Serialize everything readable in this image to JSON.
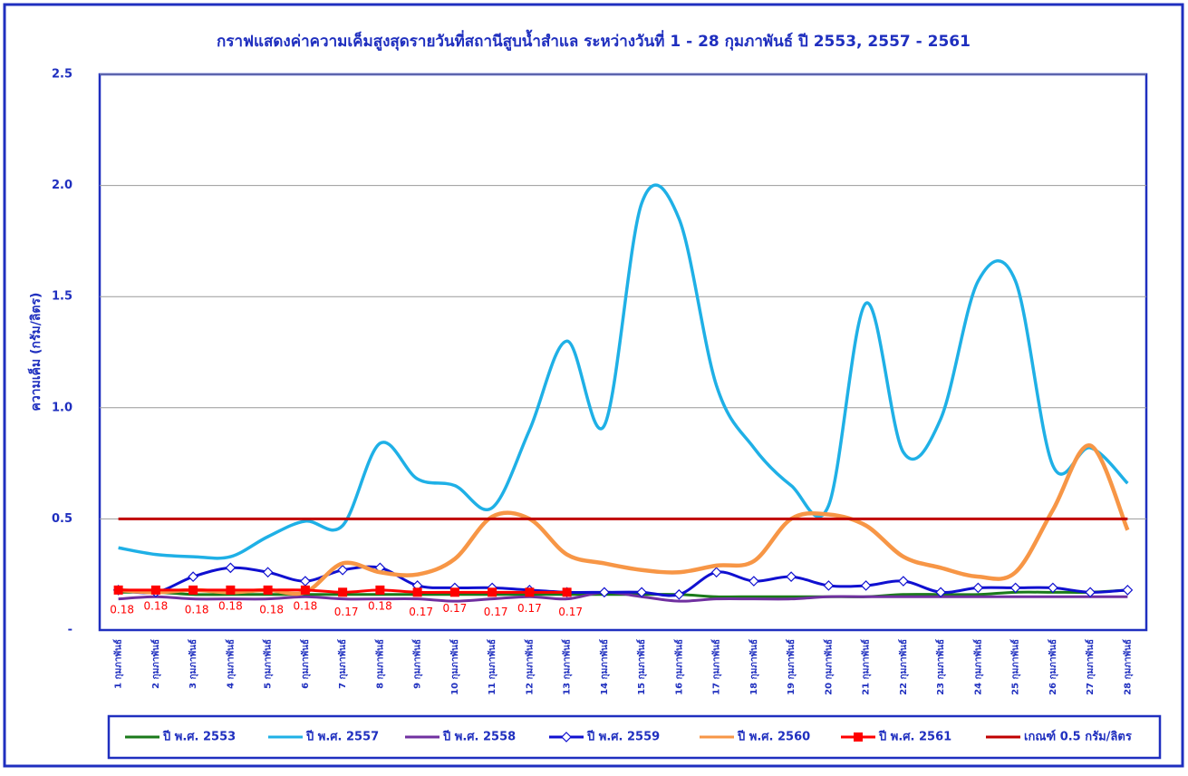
{
  "chart_data": {
    "type": "line",
    "title": "กราฟแสดงค่าความเค็มสูงสุดรายวันที่สถานีสูบน้ำสำแล ระหว่างวันที่ 1 - 28 กุมภาพันธ์ ปี 2553, 2557 - 2561",
    "y_label": "ความเค็ม (กรัม/ลิตร)",
    "categories": [
      "1 กุมภาพันธ์",
      "2 กุมภาพันธ์",
      "3 กุมภาพันธ์",
      "4 กุมภาพันธ์",
      "5 กุมภาพันธ์",
      "6 กุมภาพันธ์",
      "7 กุมภาพันธ์",
      "8 กุมภาพันธ์",
      "9 กุมภาพันธ์",
      "10 กุมภาพันธ์",
      "11 กุมภาพันธ์",
      "12 กุมภาพันธ์",
      "13 กุมภาพันธ์",
      "14 กุมภาพันธ์",
      "15 กุมภาพันธ์",
      "16 กุมภาพันธ์",
      "17 กุมภาพันธ์",
      "18 กุมภาพันธ์",
      "19 กุมภาพันธ์",
      "20 กุมภาพันธ์",
      "21 กุมภาพันธ์",
      "22 กุมภาพันธ์",
      "23 กุมภาพันธ์",
      "24 กุมภาพันธ์",
      "25 กุมภาพันธ์",
      "26 กุมภาพันธ์",
      "27 กุมภาพันธ์",
      "28 กุมภาพันธ์"
    ],
    "ylim": [
      0,
      2.5
    ],
    "yticks": [
      {
        "value": 0,
        "label": "-"
      },
      0.5,
      {
        "value": 1,
        "label": "1.0"
      },
      1.5,
      {
        "value": 2,
        "label": "2.0"
      },
      2.5
    ],
    "grid": true,
    "series": [
      {
        "name": "ปี พ.ศ. 2553",
        "color": "#1a7a1a",
        "values": [
          0.17,
          0.17,
          0.16,
          0.16,
          0.16,
          0.16,
          0.16,
          0.16,
          0.16,
          0.16,
          0.16,
          0.16,
          0.16,
          0.16,
          0.16,
          0.16,
          0.15,
          0.15,
          0.15,
          0.15,
          0.15,
          0.16,
          0.16,
          0.16,
          0.17,
          0.17,
          0.17,
          0.18
        ]
      },
      {
        "name": "ปี พ.ศ. 2557",
        "color": "#1fb0e6",
        "values": [
          0.37,
          0.34,
          0.33,
          0.33,
          0.42,
          0.49,
          0.47,
          0.84,
          0.68,
          0.65,
          0.55,
          0.9,
          1.3,
          0.92,
          1.92,
          1.85,
          1.1,
          0.82,
          0.65,
          0.56,
          1.47,
          0.8,
          0.95,
          1.57,
          1.57,
          0.74,
          0.82,
          0.66
        ]
      },
      {
        "name": "ปี พ.ศ. 2558",
        "color": "#7030a0",
        "values": [
          0.14,
          0.15,
          0.14,
          0.14,
          0.14,
          0.15,
          0.14,
          0.14,
          0.14,
          0.13,
          0.14,
          0.15,
          0.14,
          0.17,
          0.15,
          0.13,
          0.14,
          0.14,
          0.14,
          0.15,
          0.15,
          0.15,
          0.15,
          0.15,
          0.15,
          0.15,
          0.15,
          0.15
        ]
      },
      {
        "name": "ปี พ.ศ. 2559",
        "color": "#1010d0",
        "marker": "diamond",
        "values": [
          0.18,
          0.17,
          0.24,
          0.28,
          0.26,
          0.22,
          0.27,
          0.28,
          0.2,
          0.19,
          0.19,
          0.18,
          0.17,
          0.17,
          0.17,
          0.16,
          0.26,
          0.22,
          0.24,
          0.2,
          0.2,
          0.22,
          0.17,
          0.19,
          0.19,
          0.19,
          0.17,
          0.18
        ]
      },
      {
        "name": "ปี พ.ศ. 2560",
        "color": "#f79646",
        "values": [
          0.18,
          0.17,
          0.18,
          0.17,
          0.18,
          0.17,
          0.3,
          0.26,
          0.25,
          0.32,
          0.51,
          0.5,
          0.34,
          0.3,
          0.27,
          0.26,
          0.29,
          0.31,
          0.5,
          0.52,
          0.47,
          0.33,
          0.28,
          0.24,
          0.26,
          0.54,
          0.83,
          0.45
        ]
      },
      {
        "name": "ปี พ.ศ. 2561",
        "color": "#ff0000",
        "marker": "square",
        "data_labels": true,
        "values": [
          0.18,
          0.18,
          0.18,
          0.18,
          0.18,
          0.18,
          0.17,
          0.18,
          0.17,
          0.17,
          0.17,
          0.17,
          0.17,
          null,
          null,
          null,
          null,
          null,
          null,
          null,
          null,
          null,
          null,
          null,
          null,
          null,
          null,
          null
        ]
      },
      {
        "name": "เกณฑ์ 0.5 กรัม/ลิตร",
        "color": "#c00000",
        "straight": true,
        "values": [
          0.5,
          0.5,
          0.5,
          0.5,
          0.5,
          0.5,
          0.5,
          0.5,
          0.5,
          0.5,
          0.5,
          0.5,
          0.5,
          0.5,
          0.5,
          0.5,
          0.5,
          0.5,
          0.5,
          0.5,
          0.5,
          0.5,
          0.5,
          0.5,
          0.5,
          0.5,
          0.5,
          0.5
        ]
      }
    ]
  }
}
